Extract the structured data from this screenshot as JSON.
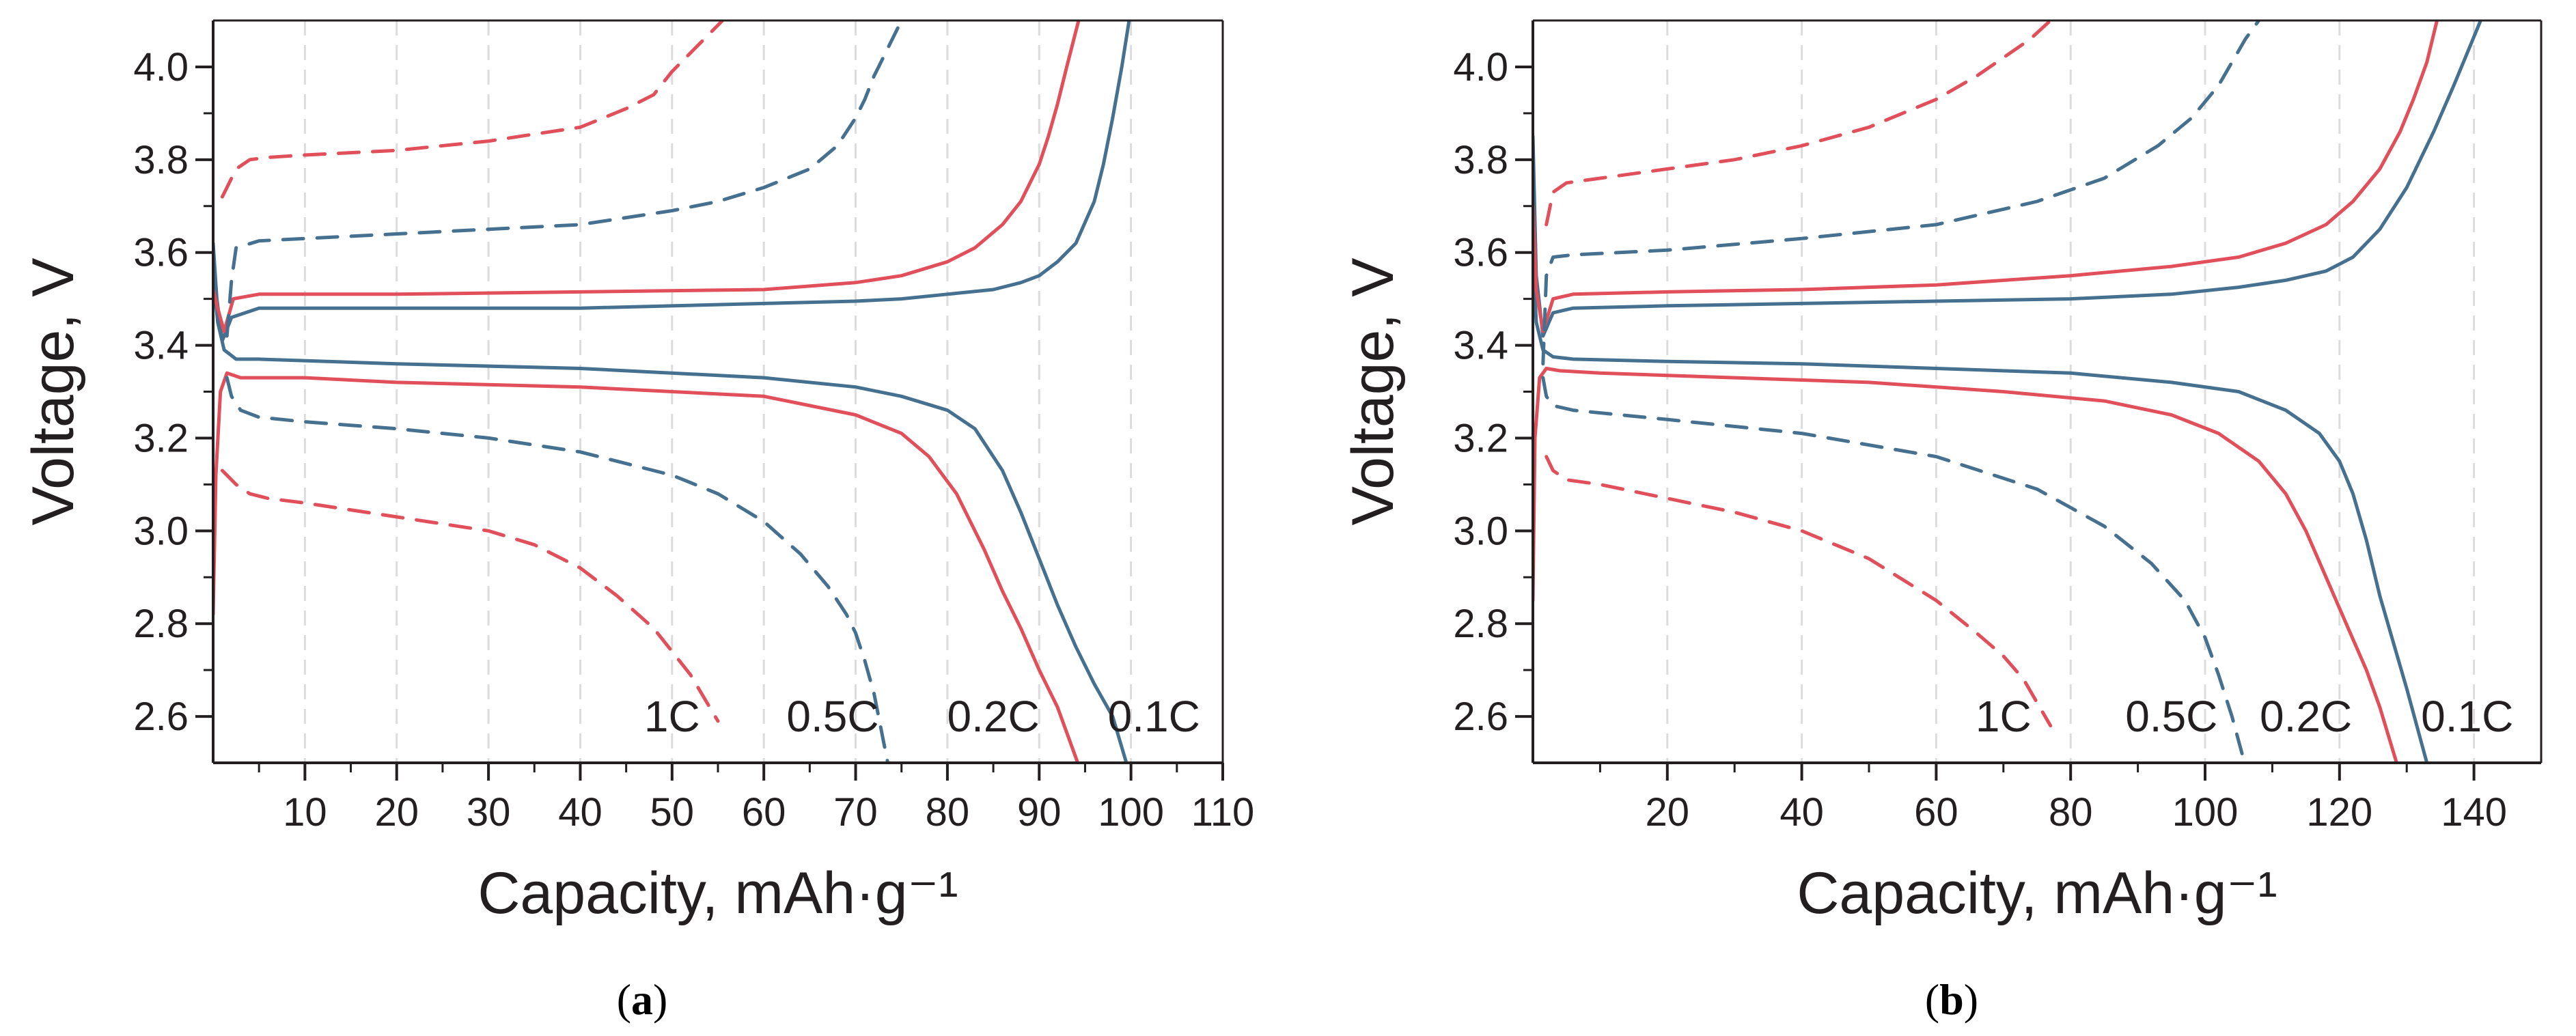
{
  "figure": {
    "panel_labels": [
      {
        "open": "(",
        "letter": "a",
        "close": ")"
      },
      {
        "open": "(",
        "letter": "b",
        "close": ")"
      }
    ]
  },
  "colors": {
    "red": "#e04f5a",
    "blue": "#45708f",
    "axis": "#231f20",
    "grid": "#dcdcdc"
  },
  "chart_data": [
    {
      "type": "line",
      "panel": "a",
      "xlabel": "Capacity, mAh·g⁻¹",
      "ylabel": "Voltage, V",
      "xlim": [
        0,
        110
      ],
      "ylim": [
        2.5,
        4.1
      ],
      "xticks": [
        10,
        20,
        30,
        40,
        50,
        60,
        70,
        80,
        90,
        100,
        110
      ],
      "yticks": [
        2.6,
        2.8,
        3.0,
        3.2,
        3.4,
        3.6,
        3.8,
        4.0
      ],
      "grid_x": true,
      "rate_labels": [
        {
          "text": "1C",
          "x": 50,
          "y": 2.6
        },
        {
          "text": "0.5C",
          "x": 67.5,
          "y": 2.6
        },
        {
          "text": "0.2C",
          "x": 85,
          "y": 2.6
        },
        {
          "text": "0.1C",
          "x": 102.5,
          "y": 2.6
        }
      ],
      "series": [
        {
          "name": "0.1C charge",
          "color": "blue",
          "dash": false,
          "x": [
            0,
            0.4,
            1,
            2,
            5,
            20,
            40,
            60,
            70,
            75,
            80,
            85,
            88,
            90,
            92,
            94,
            96,
            97,
            98,
            99,
            99.8
          ],
          "y": [
            3.62,
            3.5,
            3.41,
            3.46,
            3.48,
            3.48,
            3.48,
            3.49,
            3.495,
            3.5,
            3.51,
            3.52,
            3.535,
            3.55,
            3.58,
            3.62,
            3.71,
            3.79,
            3.89,
            4.0,
            4.1
          ]
        },
        {
          "name": "0.1C discharge",
          "color": "blue",
          "dash": false,
          "x": [
            0,
            0.5,
            1.2,
            2.5,
            5,
            20,
            40,
            60,
            70,
            75,
            80,
            83,
            86,
            88,
            90,
            92,
            94,
            96,
            98,
            99.5
          ],
          "y": [
            3.55,
            3.45,
            3.39,
            3.37,
            3.37,
            3.36,
            3.35,
            3.33,
            3.31,
            3.29,
            3.26,
            3.22,
            3.13,
            3.04,
            2.94,
            2.84,
            2.75,
            2.67,
            2.6,
            2.5
          ]
        },
        {
          "name": "0.2C charge",
          "color": "red",
          "dash": false,
          "x": [
            0,
            0.5,
            1.2,
            2.2,
            5,
            20,
            40,
            60,
            70,
            75,
            80,
            83,
            86,
            88,
            90,
            91,
            92,
            93,
            94.3
          ],
          "y": [
            3.52,
            3.48,
            3.43,
            3.5,
            3.51,
            3.51,
            3.515,
            3.52,
            3.535,
            3.55,
            3.58,
            3.61,
            3.66,
            3.71,
            3.79,
            3.85,
            3.92,
            4.0,
            4.1
          ]
        },
        {
          "name": "0.2C discharge",
          "color": "red",
          "dash": false,
          "x": [
            0,
            0.3,
            0.8,
            1.5,
            3,
            10,
            20,
            40,
            60,
            70,
            75,
            78,
            81,
            84,
            86,
            88,
            90,
            92,
            94.2
          ],
          "y": [
            2.82,
            3.12,
            3.3,
            3.34,
            3.33,
            3.33,
            3.32,
            3.31,
            3.29,
            3.25,
            3.21,
            3.16,
            3.08,
            2.96,
            2.87,
            2.79,
            2.7,
            2.62,
            2.5
          ]
        },
        {
          "name": "0.5C charge",
          "color": "blue",
          "dash": true,
          "x": [
            1.5,
            2.0,
            2.5,
            5,
            10,
            20,
            30,
            40,
            50,
            55,
            60,
            65,
            68,
            70,
            71,
            72,
            73,
            74,
            75
          ],
          "y": [
            3.42,
            3.54,
            3.61,
            3.625,
            3.63,
            3.64,
            3.65,
            3.66,
            3.69,
            3.71,
            3.74,
            3.78,
            3.83,
            3.89,
            3.93,
            3.98,
            4.02,
            4.06,
            4.1
          ]
        },
        {
          "name": "0.5C discharge",
          "color": "blue",
          "dash": true,
          "x": [
            1.5,
            2.0,
            3,
            5,
            10,
            20,
            30,
            40,
            50,
            55,
            60,
            64,
            67,
            69,
            70,
            71,
            72,
            72.7,
            73.5
          ],
          "y": [
            3.33,
            3.29,
            3.26,
            3.245,
            3.235,
            3.22,
            3.2,
            3.17,
            3.12,
            3.08,
            3.02,
            2.95,
            2.88,
            2.82,
            2.78,
            2.72,
            2.65,
            2.58,
            2.5
          ]
        },
        {
          "name": "1C charge",
          "color": "red",
          "dash": true,
          "x": [
            1.0,
            1.5,
            2.5,
            4,
            6,
            10,
            20,
            30,
            40,
            45,
            48,
            50,
            52,
            54,
            55.5
          ],
          "y": [
            3.72,
            3.74,
            3.78,
            3.8,
            3.805,
            3.81,
            3.82,
            3.84,
            3.87,
            3.91,
            3.94,
            3.99,
            4.03,
            4.07,
            4.1
          ]
        },
        {
          "name": "1C discharge",
          "color": "red",
          "dash": true,
          "x": [
            1.0,
            1.5,
            2.5,
            4,
            6,
            10,
            20,
            30,
            35,
            40,
            44,
            48,
            50,
            52,
            53.5,
            55
          ],
          "y": [
            3.13,
            3.12,
            3.1,
            3.08,
            3.07,
            3.06,
            3.03,
            3.0,
            2.97,
            2.92,
            2.86,
            2.79,
            2.74,
            2.69,
            2.64,
            2.59
          ]
        }
      ]
    },
    {
      "type": "line",
      "panel": "b",
      "xlabel": "Capacity, mAh·g⁻¹",
      "ylabel": "Voltage, V",
      "xlim": [
        0,
        150
      ],
      "ylim": [
        2.5,
        4.1
      ],
      "xticks": [
        20,
        40,
        60,
        80,
        100,
        120,
        140
      ],
      "yticks": [
        2.6,
        2.8,
        3.0,
        3.2,
        3.4,
        3.6,
        3.8,
        4.0
      ],
      "grid_x": true,
      "rate_labels": [
        {
          "text": "1C",
          "x": 70,
          "y": 2.6
        },
        {
          "text": "0.5C",
          "x": 95,
          "y": 2.6
        },
        {
          "text": "0.2C",
          "x": 115,
          "y": 2.6
        },
        {
          "text": "0.1C",
          "x": 139,
          "y": 2.6
        }
      ],
      "series": [
        {
          "name": "0.1C charge",
          "color": "blue",
          "dash": false,
          "x": [
            0,
            0.5,
            1.5,
            3,
            6,
            20,
            40,
            60,
            80,
            95,
            105,
            112,
            118,
            122,
            126,
            130,
            134,
            137,
            139,
            141
          ],
          "y": [
            3.85,
            3.55,
            3.42,
            3.47,
            3.48,
            3.485,
            3.49,
            3.495,
            3.5,
            3.51,
            3.525,
            3.54,
            3.56,
            3.59,
            3.65,
            3.74,
            3.86,
            3.96,
            4.03,
            4.1
          ]
        },
        {
          "name": "0.1C discharge",
          "color": "blue",
          "dash": false,
          "x": [
            0,
            0.5,
            1.5,
            3,
            6,
            20,
            40,
            60,
            80,
            95,
            105,
            112,
            117,
            120,
            122,
            124,
            126,
            128,
            130,
            133
          ],
          "y": [
            3.6,
            3.45,
            3.39,
            3.375,
            3.37,
            3.365,
            3.36,
            3.35,
            3.34,
            3.32,
            3.3,
            3.26,
            3.21,
            3.15,
            3.08,
            2.98,
            2.86,
            2.76,
            2.66,
            2.5
          ]
        },
        {
          "name": "0.2C charge",
          "color": "red",
          "dash": false,
          "x": [
            0,
            0.5,
            1.5,
            3,
            6,
            20,
            40,
            60,
            80,
            95,
            105,
            112,
            118,
            122,
            126,
            129,
            131,
            133,
            134.5
          ],
          "y": [
            3.7,
            3.52,
            3.43,
            3.5,
            3.51,
            3.515,
            3.52,
            3.53,
            3.55,
            3.57,
            3.59,
            3.62,
            3.66,
            3.71,
            3.78,
            3.86,
            3.93,
            4.01,
            4.1
          ]
        },
        {
          "name": "0.2C discharge",
          "color": "red",
          "dash": false,
          "x": [
            0,
            0.3,
            1,
            2,
            4,
            10,
            30,
            50,
            70,
            85,
            95,
            102,
            108,
            112,
            115,
            118,
            121,
            124,
            126,
            128.5
          ],
          "y": [
            2.85,
            3.2,
            3.33,
            3.35,
            3.345,
            3.34,
            3.33,
            3.32,
            3.3,
            3.28,
            3.25,
            3.21,
            3.15,
            3.08,
            3.0,
            2.9,
            2.8,
            2.7,
            2.62,
            2.5
          ]
        },
        {
          "name": "0.5C charge",
          "color": "blue",
          "dash": true,
          "x": [
            1.5,
            2,
            3,
            6,
            20,
            40,
            60,
            75,
            85,
            93,
            98,
            102,
            104,
            106,
            108
          ],
          "y": [
            3.36,
            3.55,
            3.59,
            3.595,
            3.605,
            3.63,
            3.66,
            3.71,
            3.76,
            3.83,
            3.89,
            3.96,
            4.01,
            4.06,
            4.1
          ]
        },
        {
          "name": "0.5C discharge",
          "color": "blue",
          "dash": true,
          "x": [
            1.5,
            2,
            3,
            6,
            20,
            40,
            60,
            75,
            85,
            92,
            97,
            100,
            102,
            104,
            105.5
          ],
          "y": [
            3.33,
            3.29,
            3.27,
            3.26,
            3.24,
            3.21,
            3.16,
            3.09,
            3.01,
            2.93,
            2.85,
            2.77,
            2.69,
            2.6,
            2.52
          ]
        },
        {
          "name": "1C charge",
          "color": "red",
          "dash": true,
          "x": [
            2,
            3,
            5,
            10,
            20,
            30,
            40,
            50,
            60,
            66,
            70,
            74,
            77
          ],
          "y": [
            3.66,
            3.73,
            3.75,
            3.76,
            3.78,
            3.8,
            3.83,
            3.87,
            3.93,
            3.98,
            4.02,
            4.06,
            4.1
          ]
        },
        {
          "name": "1C discharge",
          "color": "red",
          "dash": true,
          "x": [
            2,
            3,
            5,
            10,
            20,
            30,
            40,
            50,
            60,
            66,
            70,
            73,
            75,
            77
          ],
          "y": [
            3.16,
            3.13,
            3.11,
            3.1,
            3.07,
            3.04,
            3.0,
            2.94,
            2.85,
            2.78,
            2.73,
            2.68,
            2.63,
            2.58
          ]
        }
      ]
    }
  ]
}
